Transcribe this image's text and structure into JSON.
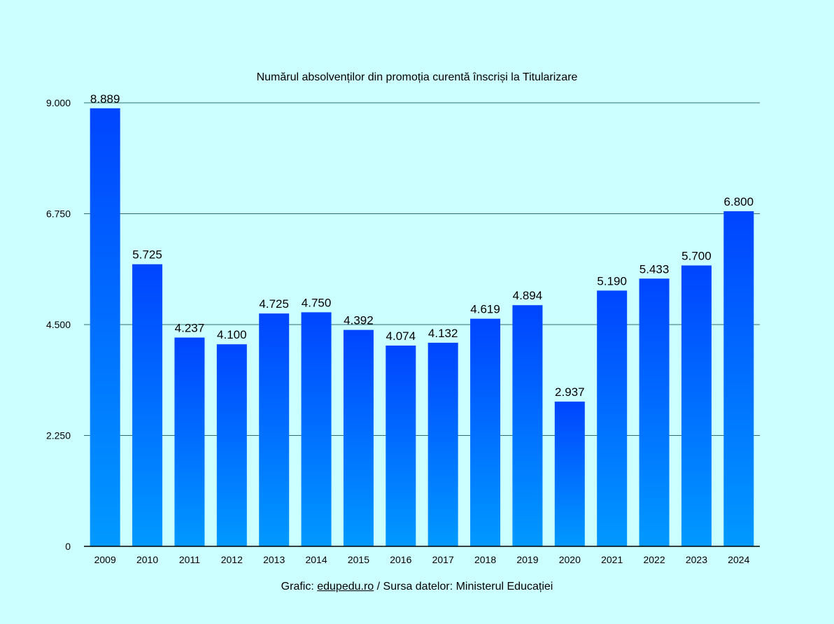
{
  "chart_data": {
    "type": "bar",
    "title": "Numărul absolvenților din promoția curentă înscriși la Titularizare",
    "categories": [
      "2009",
      "2010",
      "2011",
      "2012",
      "2013",
      "2014",
      "2015",
      "2016",
      "2017",
      "2018",
      "2019",
      "2020",
      "2021",
      "2022",
      "2023",
      "2024"
    ],
    "values": [
      8889,
      5725,
      4237,
      4100,
      4725,
      4750,
      4392,
      4074,
      4132,
      4619,
      4894,
      2937,
      5190,
      5433,
      5700,
      6800
    ],
    "value_labels": [
      "8.889",
      "5.725",
      "4.237",
      "4.100",
      "4.725",
      "4.750",
      "4.392",
      "4.074",
      "4.132",
      "4.619",
      "4.894",
      "2.937",
      "5.190",
      "5.433",
      "5.700",
      "6.800"
    ],
    "ylim": [
      0,
      9000
    ],
    "yticks": [
      0,
      2250,
      4500,
      6750,
      9000
    ],
    "ytick_labels": [
      "0",
      "2.250",
      "4.500",
      "6.750",
      "9.000"
    ],
    "grid": true,
    "legend": "none",
    "colors": {
      "background": "#ccffff",
      "bar_top": "#0044ff",
      "bar_bottom": "#0099ff",
      "grid": "#2f6f6f",
      "axis": "#000000",
      "text": "#000000"
    }
  },
  "footer": {
    "prefix": "Grafic: ",
    "link": "edupedu.ro",
    "suffix": " / Sursa datelor: Ministerul Educației"
  }
}
